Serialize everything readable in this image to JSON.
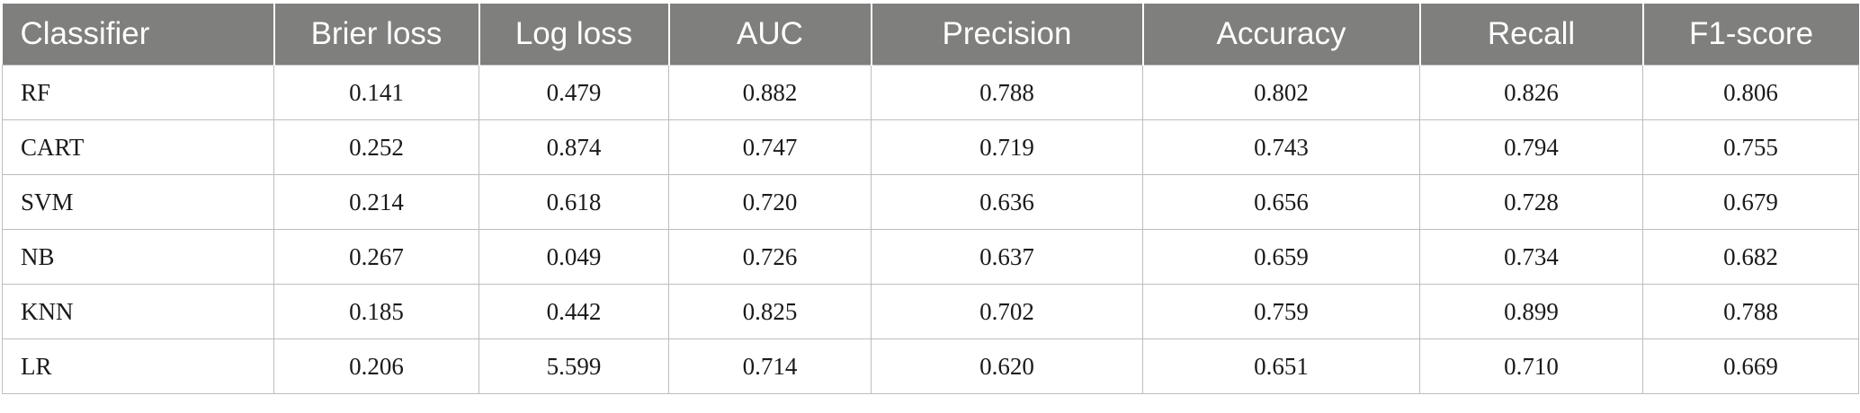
{
  "table": {
    "headers": [
      "Classifier",
      "Brier loss",
      "Log loss",
      "AUC",
      "Precision",
      "Accuracy",
      "Recall",
      "F1-score"
    ],
    "rows": [
      [
        "RF",
        "0.141",
        "0.479",
        "0.882",
        "0.788",
        "0.802",
        "0.826",
        "0.806"
      ],
      [
        "CART",
        "0.252",
        "0.874",
        "0.747",
        "0.719",
        "0.743",
        "0.794",
        "0.755"
      ],
      [
        "SVM",
        "0.214",
        "0.618",
        "0.720",
        "0.636",
        "0.656",
        "0.728",
        "0.679"
      ],
      [
        "NB",
        "0.267",
        "0.049",
        "0.726",
        "0.637",
        "0.659",
        "0.734",
        "0.682"
      ],
      [
        "KNN",
        "0.185",
        "0.442",
        "0.825",
        "0.702",
        "0.759",
        "0.899",
        "0.788"
      ],
      [
        "LR",
        "0.206",
        "5.599",
        "0.714",
        "0.620",
        "0.651",
        "0.710",
        "0.669"
      ]
    ]
  },
  "colors": {
    "header_background": "#7f7f7e",
    "header_text": "#ffffff",
    "grid_line": "#bdbdbd"
  }
}
